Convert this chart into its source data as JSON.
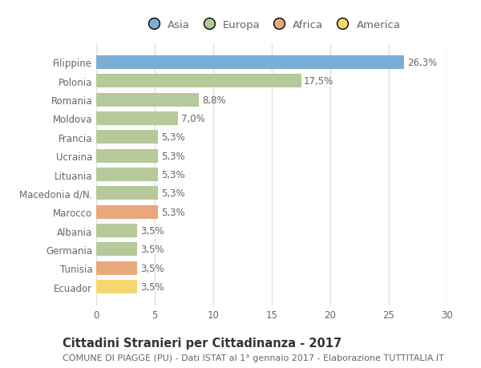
{
  "categories": [
    "Ecuador",
    "Tunisia",
    "Germania",
    "Albania",
    "Marocco",
    "Macedonia d/N.",
    "Lituania",
    "Ucraina",
    "Francia",
    "Moldova",
    "Romania",
    "Polonia",
    "Filippine"
  ],
  "values": [
    3.5,
    3.5,
    3.5,
    3.5,
    5.3,
    5.3,
    5.3,
    5.3,
    5.3,
    7.0,
    8.8,
    17.5,
    26.3
  ],
  "bar_colors": [
    "#f5d76e",
    "#e8a87c",
    "#b5c99a",
    "#b5c99a",
    "#e8a87c",
    "#b5c99a",
    "#b5c99a",
    "#b5c99a",
    "#b5c99a",
    "#b5c99a",
    "#b5c99a",
    "#b5c99a",
    "#7aaed6"
  ],
  "value_labels": [
    "3,5%",
    "3,5%",
    "3,5%",
    "3,5%",
    "5,3%",
    "5,3%",
    "5,3%",
    "5,3%",
    "5,3%",
    "7,0%",
    "8,8%",
    "17,5%",
    "26,3%"
  ],
  "legend_labels": [
    "Asia",
    "Europa",
    "Africa",
    "America"
  ],
  "legend_colors": [
    "#7aaed6",
    "#b5c99a",
    "#e8a87c",
    "#f5d76e"
  ],
  "title": "Cittadini Stranieri per Cittadinanza - 2017",
  "subtitle": "COMUNE DI PIAGGE (PU) - Dati ISTAT al 1° gennaio 2017 - Elaborazione TUTTITALIA.IT",
  "xlim": [
    0,
    30
  ],
  "xticks": [
    0,
    5,
    10,
    15,
    20,
    25,
    30
  ],
  "background_color": "#ffffff",
  "plot_background": "#ffffff",
  "grid_color": "#e0e0e0",
  "bar_height": 0.72,
  "title_fontsize": 10.5,
  "subtitle_fontsize": 8,
  "label_fontsize": 8.5,
  "tick_fontsize": 8.5,
  "legend_fontsize": 9.5
}
